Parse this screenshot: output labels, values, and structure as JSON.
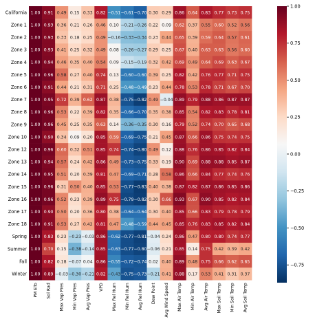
{
  "chart_data": {
    "type": "heatmap",
    "title": "",
    "xlabel": "",
    "ylabel": "",
    "rows": [
      "California",
      "Zone 1",
      "Zone 2",
      "Zone 3",
      "Zone 4",
      "Zone 5",
      "Zone 6",
      "Zone 7",
      "Zone 8",
      "Zone 9",
      "Zone 10",
      "Zone 12",
      "Zone 13",
      "Zone 14",
      "Zone 15",
      "Zone 16",
      "Zone 17",
      "Zone 18",
      "Spring",
      "Summer",
      "Fall",
      "Winter"
    ],
    "columns": [
      "PM ETo",
      "Sol Rad",
      "Max Vap Pres",
      "Min Vap Pres",
      "Avg Vap Pres",
      "VPD",
      "Max Rel Hum",
      "Min Rel Hum",
      "Avg Rel Hum",
      "Dew Point",
      "Avg Wind Speed",
      "Max Air Temp",
      "Min Air Temp",
      "Avg Air Temp",
      "Max Soil Temp",
      "Min Soil Temp",
      "Avg Soil Temp"
    ],
    "values": [
      [
        1.0,
        0.91,
        0.49,
        0.15,
        0.33,
        0.82,
        -0.51,
        -0.61,
        -0.7,
        0.3,
        0.29,
        0.86,
        0.64,
        0.83,
        0.77,
        0.73,
        0.75
      ],
      [
        1.0,
        0.93,
        0.36,
        0.21,
        0.26,
        0.46,
        0.1,
        -0.21,
        -0.26,
        0.22,
        0.09,
        0.62,
        0.37,
        0.55,
        0.6,
        0.52,
        0.56
      ],
      [
        1.0,
        0.93,
        0.33,
        0.18,
        0.25,
        0.49,
        -0.16,
        -0.33,
        -0.34,
        0.23,
        0.44,
        0.65,
        0.39,
        0.59,
        0.64,
        0.57,
        0.61
      ],
      [
        1.0,
        0.93,
        0.41,
        0.25,
        0.32,
        0.49,
        0.08,
        -0.26,
        -0.27,
        0.29,
        0.25,
        0.67,
        0.4,
        0.63,
        0.63,
        0.56,
        0.6
      ],
      [
        1.0,
        0.94,
        0.46,
        0.35,
        0.4,
        0.54,
        0.09,
        -0.15,
        -0.19,
        0.32,
        0.42,
        0.69,
        0.49,
        0.64,
        0.69,
        0.63,
        0.67
      ],
      [
        1.0,
        0.96,
        0.58,
        0.27,
        0.4,
        0.74,
        0.13,
        -0.6,
        -0.6,
        0.39,
        0.25,
        0.82,
        0.42,
        0.76,
        0.77,
        0.71,
        0.75
      ],
      [
        1.0,
        0.91,
        0.44,
        0.21,
        0.31,
        0.71,
        0.25,
        -0.48,
        -0.49,
        0.23,
        0.44,
        0.78,
        0.53,
        0.78,
        0.71,
        0.67,
        0.7
      ],
      [
        1.0,
        0.95,
        0.72,
        0.39,
        0.62,
        0.87,
        0.38,
        -0.75,
        -0.82,
        0.49,
        -0.04,
        0.89,
        0.79,
        0.88,
        0.86,
        0.87,
        0.87
      ],
      [
        1.0,
        0.96,
        0.53,
        0.22,
        0.39,
        0.82,
        0.35,
        -0.66,
        -0.7,
        0.35,
        0.38,
        0.85,
        0.54,
        0.82,
        0.83,
        0.78,
        0.81
      ],
      [
        1.0,
        0.96,
        0.45,
        0.25,
        0.35,
        0.63,
        0.14,
        -0.36,
        -0.35,
        0.3,
        0.16,
        0.79,
        0.52,
        0.74,
        0.7,
        0.65,
        0.68
      ],
      [
        1.0,
        0.9,
        0.34,
        0.09,
        0.2,
        0.85,
        0.59,
        -0.69,
        -0.75,
        0.21,
        0.45,
        0.87,
        0.66,
        0.86,
        0.75,
        0.74,
        0.75
      ],
      [
        1.0,
        0.96,
        0.6,
        0.32,
        0.51,
        0.85,
        0.74,
        -0.74,
        -0.8,
        0.49,
        0.12,
        0.88,
        0.76,
        0.86,
        0.85,
        0.82,
        0.84
      ],
      [
        1.0,
        0.94,
        0.57,
        0.24,
        0.42,
        0.86,
        0.49,
        -0.73,
        -0.75,
        0.33,
        0.19,
        0.9,
        0.69,
        0.88,
        0.88,
        0.85,
        0.87
      ],
      [
        1.0,
        0.95,
        0.51,
        0.2,
        0.39,
        0.81,
        0.47,
        -0.69,
        -0.71,
        0.28,
        0.58,
        0.86,
        0.66,
        0.84,
        0.77,
        0.74,
        0.76
      ],
      [
        1.0,
        0.96,
        0.31,
        0.5,
        0.4,
        0.85,
        0.53,
        -0.77,
        -0.83,
        0.4,
        0.38,
        0.87,
        0.82,
        0.87,
        0.86,
        0.85,
        0.86
      ],
      [
        1.0,
        0.96,
        0.52,
        0.23,
        0.39,
        0.89,
        0.75,
        -0.79,
        -0.82,
        0.3,
        0.66,
        0.93,
        0.67,
        0.9,
        0.85,
        0.82,
        0.84
      ],
      [
        1.0,
        0.9,
        0.5,
        0.2,
        0.36,
        0.8,
        0.38,
        -0.64,
        -0.64,
        0.3,
        0.4,
        0.85,
        0.66,
        0.83,
        0.79,
        0.78,
        0.79
      ],
      [
        1.0,
        0.91,
        0.53,
        0.27,
        0.42,
        0.81,
        0.47,
        -0.48,
        -0.59,
        0.44,
        0.45,
        0.85,
        0.76,
        0.83,
        0.85,
        0.82,
        0.84
      ],
      [
        1.0,
        0.83,
        0.23,
        -0.23,
        -0.03,
        0.86,
        -0.62,
        -0.77,
        -0.81,
        -0.04,
        0.24,
        0.86,
        0.47,
        0.8,
        0.8,
        0.74,
        0.77
      ],
      [
        1.0,
        0.7,
        0.15,
        -0.38,
        -0.14,
        0.85,
        -0.63,
        -0.77,
        -0.8,
        -0.06,
        0.21,
        0.85,
        0.14,
        0.75,
        0.42,
        0.39,
        0.42
      ],
      [
        1.0,
        0.82,
        0.18,
        -0.07,
        0.04,
        0.86,
        -0.55,
        -0.72,
        -0.74,
        0.02,
        0.4,
        0.89,
        0.48,
        0.75,
        0.66,
        0.62,
        0.65
      ],
      [
        1.0,
        0.89,
        -0.03,
        -0.3,
        -0.21,
        0.82,
        -0.43,
        -0.75,
        -0.73,
        -0.21,
        0.41,
        0.88,
        0.17,
        0.53,
        0.41,
        0.31,
        0.37
      ]
    ],
    "colormap": "RdBu_r",
    "vmin": -0.87,
    "vmax": 1.0,
    "colorbar_ticks": [
      1.0,
      0.75,
      0.5,
      0.25,
      0.0,
      -0.25,
      -0.5,
      -0.75
    ],
    "colorbar_tick_labels": [
      "1.00",
      "0.75",
      "0.50",
      "0.25",
      "0.00",
      "−0.25",
      "−0.50",
      "−0.75"
    ]
  }
}
